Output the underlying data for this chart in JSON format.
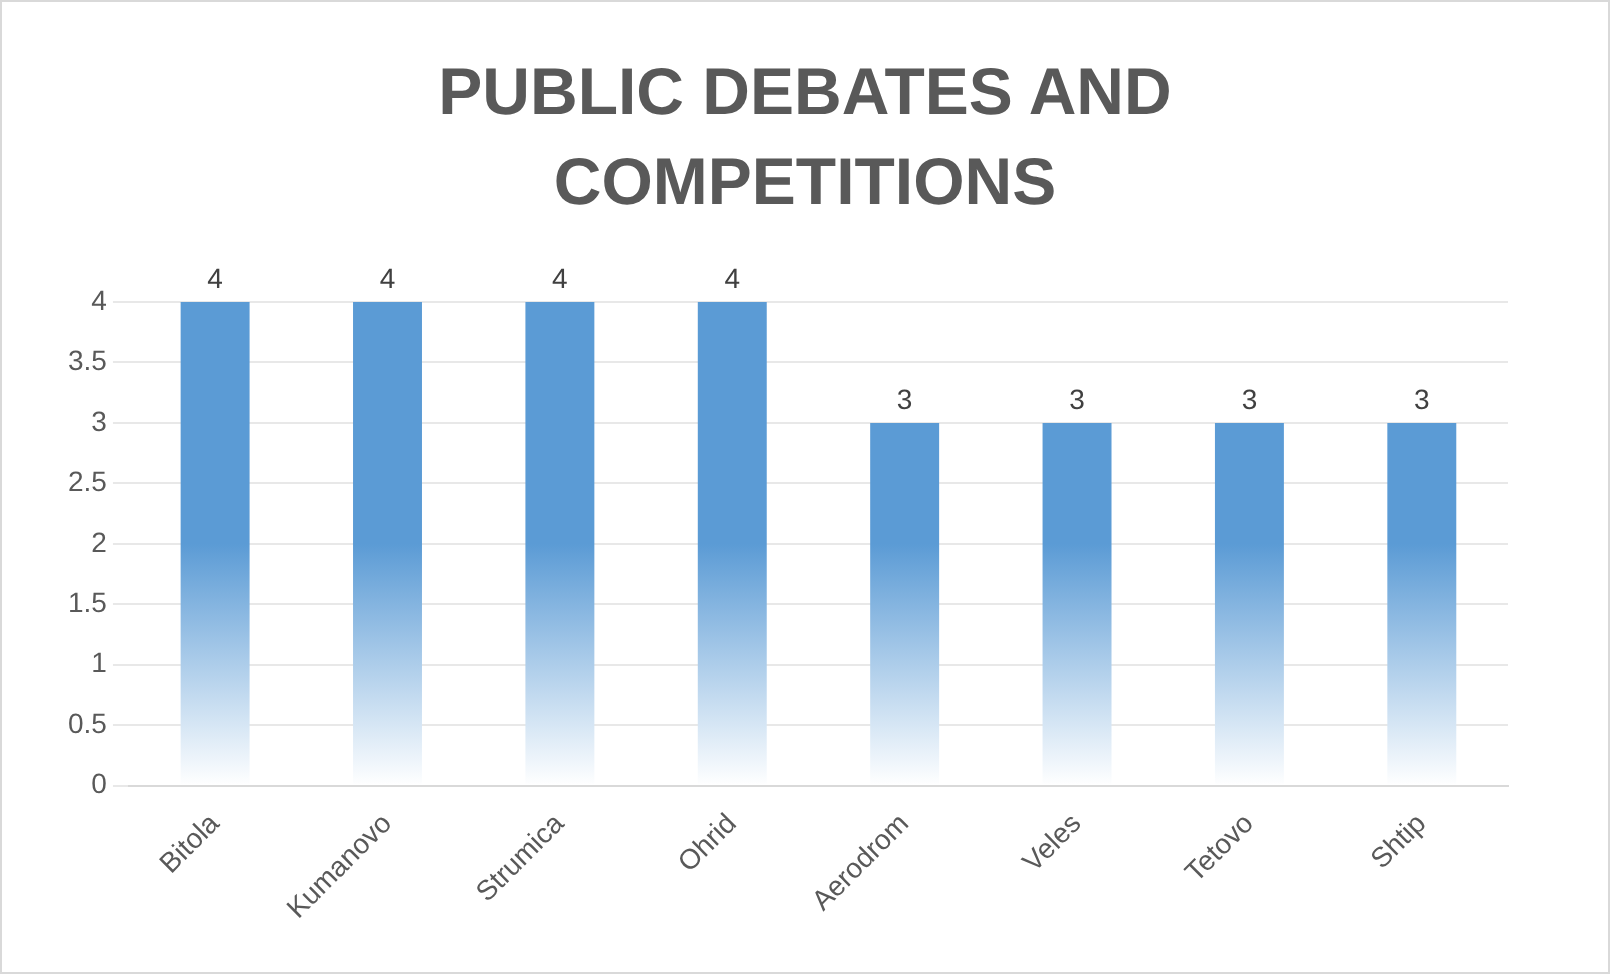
{
  "chart_data": {
    "type": "bar",
    "title": "PUBLIC DEBATES AND COMPETITIONS",
    "categories": [
      "Bitola",
      "Kumanovo",
      "Strumica",
      "Ohrid",
      "Aerodrom",
      "Veles",
      "Tetovo",
      "Shtip"
    ],
    "values": [
      4,
      4,
      4,
      4,
      3,
      3,
      3,
      3
    ],
    "color": "#5b9bd5",
    "ylim": [
      0,
      4
    ],
    "yticks": [
      0,
      0.5,
      1,
      1.5,
      2,
      2.5,
      3,
      3.5,
      4
    ],
    "grid": "y",
    "data_labels": true,
    "legend": false
  }
}
